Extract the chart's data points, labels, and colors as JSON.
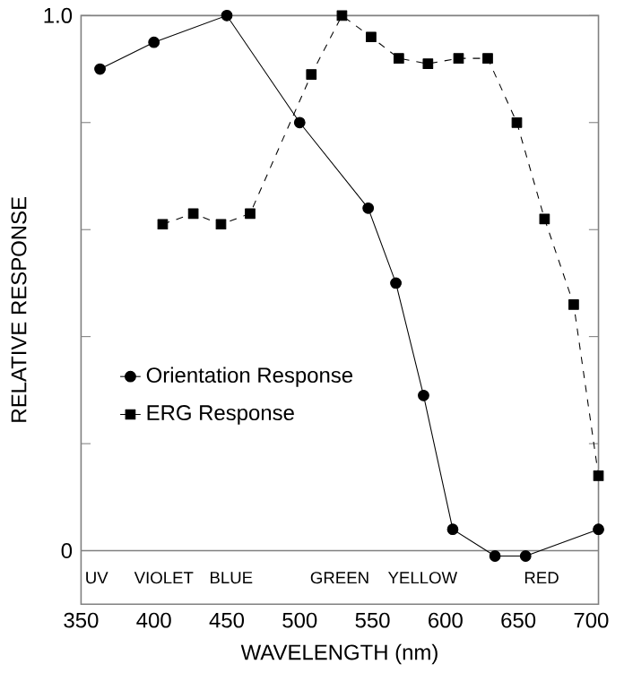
{
  "chart_data": {
    "type": "line",
    "xlabel": "WAVELENGTH (nm)",
    "ylabel": "RELATIVE RESPONSE",
    "xlim": [
      350,
      705
    ],
    "ylim": [
      -0.1,
      1.0
    ],
    "xticks": [
      350,
      400,
      450,
      500,
      550,
      600,
      650,
      700
    ],
    "yticks": [
      {
        "value": 0,
        "label": "0"
      },
      {
        "value": 0.2,
        "label": null
      },
      {
        "value": 0.4,
        "label": null
      },
      {
        "value": 0.6,
        "label": null
      },
      {
        "value": 0.8,
        "label": null
      },
      {
        "value": 1.0,
        "label": "1.0"
      }
    ],
    "legend": "left",
    "grid": false,
    "ref_lines": [
      {
        "axis": "y",
        "value": 0,
        "label": null
      }
    ],
    "annotations": [
      "UV",
      "VIOLET",
      "BLUE",
      "GREEN",
      "YELLOW",
      "RED"
    ],
    "series": [
      {
        "name": "Orientation Response",
        "color": "#000000",
        "marker": "circle",
        "line_style": "solid",
        "x": [
          363,
          400,
          450,
          500,
          547,
          566,
          585,
          605,
          634,
          655,
          705
        ],
        "values": [
          0.9,
          0.95,
          1.0,
          0.8,
          0.64,
          0.5,
          0.29,
          0.04,
          -0.01,
          -0.01,
          0.04
        ]
      },
      {
        "name": "ERG Response",
        "color": "#000000",
        "marker": "square",
        "line_style": "dashed",
        "x": [
          406,
          427,
          446,
          466,
          508,
          529,
          549,
          568,
          588,
          609,
          629,
          649,
          668,
          688,
          705
        ],
        "values": [
          0.61,
          0.63,
          0.61,
          0.63,
          0.89,
          1.0,
          0.96,
          0.92,
          0.91,
          0.92,
          0.92,
          0.8,
          0.62,
          0.46,
          0.14
        ]
      }
    ]
  }
}
